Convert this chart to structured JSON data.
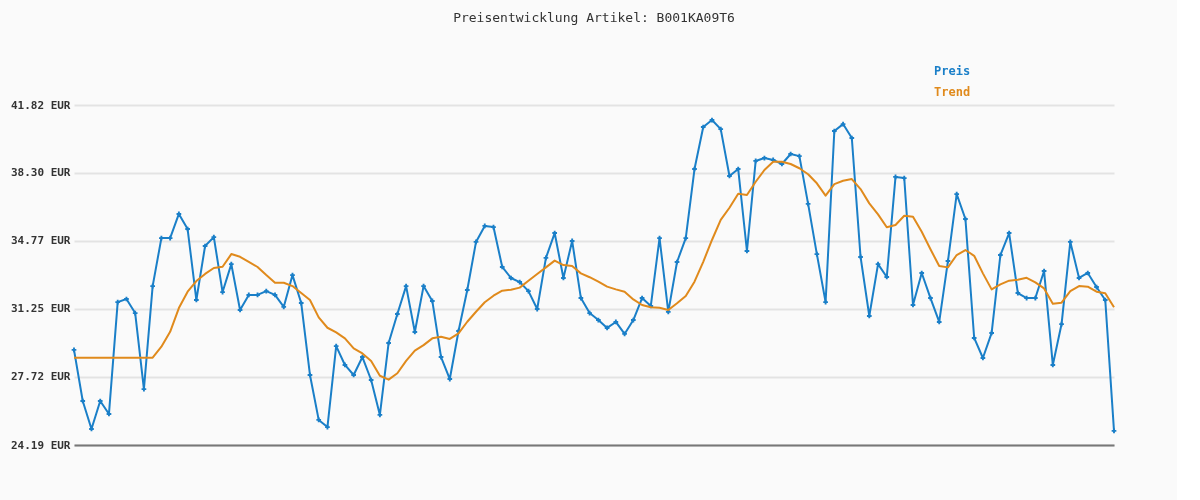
{
  "chart_data": {
    "type": "line",
    "title": "Preisentwicklung Artikel: B001KA09T6",
    "categories": [
      null,
      null,
      null,
      null,
      null,
      null,
      null,
      null,
      null,
      null,
      null,
      null,
      null,
      null,
      null,
      null,
      null,
      null,
      null,
      null,
      null,
      null,
      null,
      null,
      null,
      null,
      null,
      null,
      null,
      null,
      null,
      null,
      null,
      null,
      null,
      null,
      null,
      null,
      null,
      null,
      null,
      null,
      null,
      null,
      null,
      null,
      null,
      null,
      null,
      null,
      null,
      null,
      null,
      null,
      null,
      null,
      null,
      null,
      null,
      null,
      null,
      null,
      null,
      null,
      null,
      null,
      null,
      null,
      null,
      null,
      null,
      null,
      null,
      null,
      null,
      null,
      null,
      null,
      null,
      null,
      null,
      null,
      null,
      null,
      null,
      null,
      null,
      null,
      null,
      null,
      null,
      null,
      null,
      null,
      null,
      null,
      null,
      null,
      null,
      null,
      null,
      null,
      null,
      null,
      null,
      null,
      null,
      null,
      null,
      null,
      null,
      null,
      null,
      null,
      null,
      null,
      null,
      null,
      null,
      null
    ],
    "series": [
      {
        "name": "Preis",
        "color": "#1a7fc8",
        "marker": "cross",
        "values": [
          29.12,
          26.47,
          25.02,
          26.47,
          25.8,
          31.6,
          31.76,
          31.03,
          27.09,
          32.43,
          34.92,
          34.92,
          36.17,
          35.39,
          31.71,
          34.51,
          34.97,
          32.12,
          33.57,
          31.19,
          31.97,
          31.97,
          32.17,
          31.97,
          31.35,
          33.0,
          31.55,
          27.82,
          25.49,
          25.12,
          29.32,
          28.34,
          27.82,
          28.75,
          27.56,
          25.75,
          29.48,
          30.98,
          32.43,
          30.05,
          32.43,
          31.66,
          28.75,
          27.61,
          30.1,
          32.23,
          34.72,
          35.55,
          35.49,
          33.42,
          32.85,
          32.64,
          32.17,
          31.24,
          33.89,
          35.18,
          32.85,
          34.77,
          31.81,
          31.03,
          30.67,
          30.26,
          30.57,
          29.95,
          30.67,
          31.81,
          31.4,
          34.92,
          31.09,
          33.68,
          34.92,
          38.5,
          40.68,
          41.04,
          40.57,
          38.14,
          38.5,
          34.25,
          38.92,
          39.07,
          38.97,
          38.76,
          39.28,
          39.17,
          36.69,
          34.09,
          31.6,
          40.47,
          40.83,
          40.11,
          33.94,
          30.88,
          33.57,
          32.9,
          38.09,
          38.03,
          31.45,
          33.11,
          31.81,
          30.57,
          33.73,
          37.2,
          35.91,
          29.74,
          28.7,
          30.0,
          34.04,
          35.18,
          32.07,
          31.81,
          31.81,
          33.21,
          28.34,
          30.46,
          34.72,
          32.85,
          33.11,
          32.38,
          31.71,
          24.92
        ]
      },
      {
        "name": "Trend",
        "color": "#e08a1c",
        "marker": "none",
        "values": [
          28.72,
          28.72,
          28.72,
          28.72,
          28.72,
          28.72,
          28.72,
          28.72,
          28.72,
          28.72,
          29.29,
          30.06,
          31.29,
          32.14,
          32.69,
          33.06,
          33.37,
          33.43,
          34.09,
          33.95,
          33.69,
          33.42,
          33.0,
          32.6,
          32.6,
          32.43,
          32.07,
          31.71,
          30.81,
          30.27,
          30.03,
          29.72,
          29.2,
          28.94,
          28.55,
          27.78,
          27.58,
          27.91,
          28.55,
          29.08,
          29.37,
          29.72,
          29.8,
          29.69,
          29.98,
          30.58,
          31.1,
          31.59,
          31.93,
          32.19,
          32.24,
          32.35,
          32.71,
          33.06,
          33.4,
          33.75,
          33.52,
          33.47,
          33.09,
          32.89,
          32.66,
          32.4,
          32.26,
          32.14,
          31.74,
          31.45,
          31.33,
          31.31,
          31.19,
          31.54,
          31.92,
          32.66,
          33.69,
          34.82,
          35.86,
          36.49,
          37.22,
          37.15,
          37.84,
          38.45,
          38.88,
          38.88,
          38.76,
          38.54,
          38.23,
          37.76,
          37.12,
          37.72,
          37.89,
          37.98,
          37.46,
          36.72,
          36.15,
          35.48,
          35.6,
          36.08,
          36.03,
          35.25,
          34.34,
          33.47,
          33.4,
          34.04,
          34.3,
          34.0,
          33.09,
          32.26,
          32.52,
          32.71,
          32.76,
          32.86,
          32.62,
          32.31,
          31.52,
          31.57,
          32.17,
          32.43,
          32.4,
          32.14,
          32.06,
          31.33
        ]
      }
    ],
    "ylim": [
      24.19,
      41.82
    ],
    "yticks": [
      {
        "value": 24.19,
        "label": "24.19 EUR"
      },
      {
        "value": 27.72,
        "label": "27.72 EUR"
      },
      {
        "value": 31.25,
        "label": "31.25 EUR"
      },
      {
        "value": 34.77,
        "label": "34.77 EUR"
      },
      {
        "value": 38.3,
        "label": "38.30 EUR"
      },
      {
        "value": 41.82,
        "label": "41.82 EUR"
      }
    ],
    "grid": "y",
    "legend": "top right",
    "tick_labels": "y",
    "line_style": "solid"
  }
}
